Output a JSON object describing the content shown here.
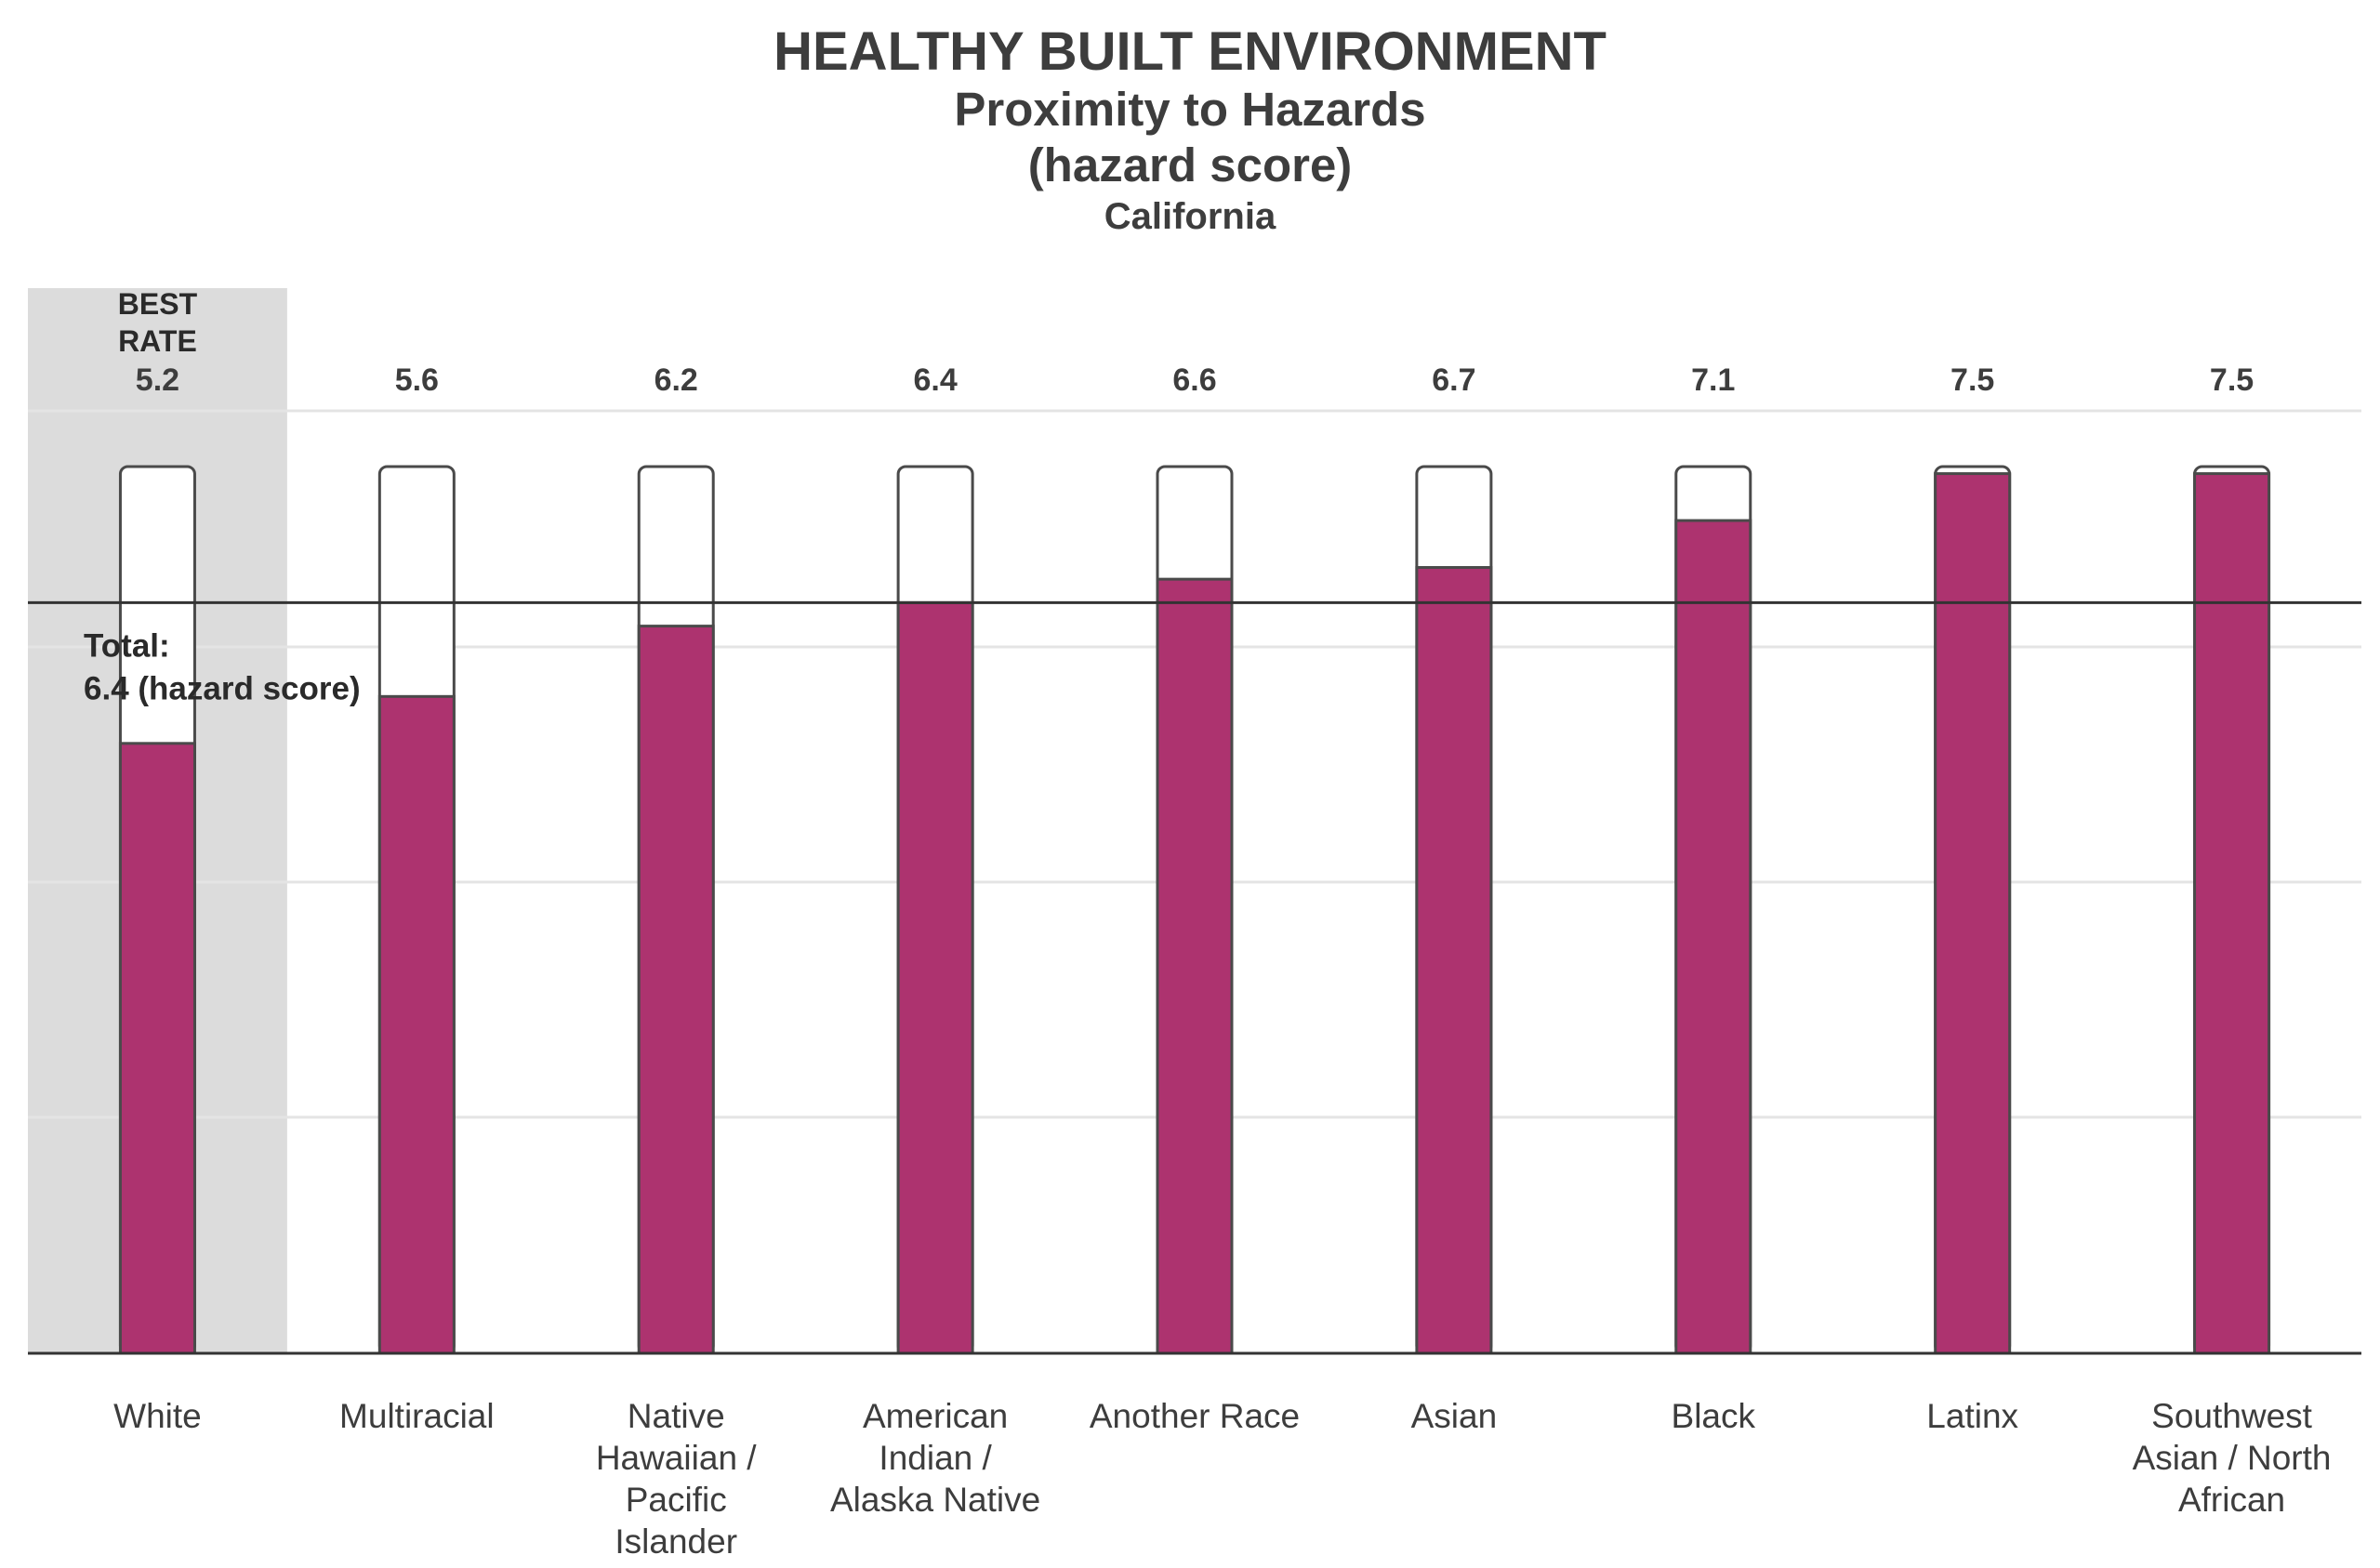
{
  "title": "HEALTHY BUILT ENVIRONMENT",
  "subtitle": "Proximity to Hazards",
  "unit": "(hazard score)",
  "region": "California",
  "best_label_line1": "BEST",
  "best_label_line2": "RATE",
  "total_label_line1": "Total:",
  "total_label_line2": "6.4 (hazard score)",
  "colors": {
    "bar": "#ad336f",
    "best_band": "#dcdcdc",
    "axis": "#333333",
    "grid": "#e4e4e4",
    "outline": "#4a4a4a",
    "text": "#3d3d3d"
  },
  "chart_data": {
    "type": "bar",
    "title": "HEALTHY BUILT ENVIRONMENT",
    "subtitle": "Proximity to Hazards",
    "ylabel": "(hazard score)",
    "region": "California",
    "categories": [
      "White",
      "Multiracial",
      "Native Hawaiian / Pacific Islander",
      "American Indian / Alaska Native",
      "Another Race",
      "Asian",
      "Black",
      "Latinx",
      "Southwest Asian / North African"
    ],
    "category_lines": [
      [
        "White"
      ],
      [
        "Multiracial"
      ],
      [
        "Native",
        "Hawaiian /",
        "Pacific",
        "Islander"
      ],
      [
        "American",
        "Indian /",
        "Alaska Native"
      ],
      [
        "Another Race"
      ],
      [
        "Asian"
      ],
      [
        "Black"
      ],
      [
        "Latinx"
      ],
      [
        "Southwest",
        "Asian / North",
        "African"
      ]
    ],
    "values": [
      5.2,
      5.6,
      6.2,
      6.4,
      6.6,
      6.7,
      7.1,
      7.5,
      7.5
    ],
    "value_labels": [
      "5.2",
      "5.6",
      "6.2",
      "6.4",
      "6.6",
      "6.7",
      "7.1",
      "7.5",
      "7.5"
    ],
    "ylim": [
      0,
      7.56
    ],
    "reference_line": {
      "value": 6.4,
      "label": "Total: 6.4 (hazard score)"
    },
    "best_category": "White",
    "grid": true,
    "legend": "none"
  }
}
